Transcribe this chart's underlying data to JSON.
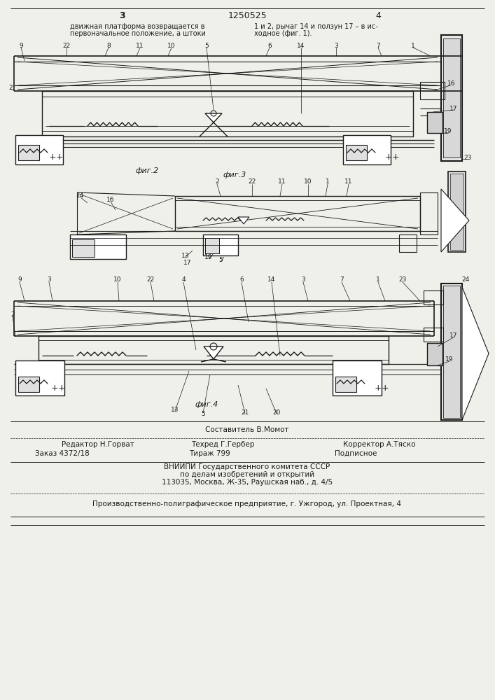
{
  "page_number_left": "3",
  "patent_number": "1250525",
  "page_number_right": "4",
  "text_left": "движная платформа возвращается в\nпервоначальное положение, а штоки",
  "text_right": "1 и 2, рычаг 14 и ползун 17 – в ис-\nходное (фиг. 1).",
  "fig2_label": "фиг.2",
  "fig3_label": "фиг.3",
  "fig4_label": "фиг.4",
  "footer_composer": "Составитель В.Момот",
  "footer_editor": "Редактор Н.Горват",
  "footer_techred": "Техред Г.Гербер",
  "footer_corrector": "Корректор А.Тяско",
  "footer_order": "Заказ 4372/18",
  "footer_tiraz": "Тираж 799",
  "footer_podpisnoe": "Подписное",
  "footer_vniipi": "ВНИИПИ Государственного комитета СССР",
  "footer_delam": "по делам изобретений и открытий",
  "footer_address": "113035, Москва, Ж-35, Раушская наб., д. 4/5",
  "footer_enterprise": "Производственно-полиграфическое предприятие, г. Ужгород, ул. Проектная, 4",
  "bg_color": "#f0f0eb",
  "line_color": "#1a1a1a"
}
